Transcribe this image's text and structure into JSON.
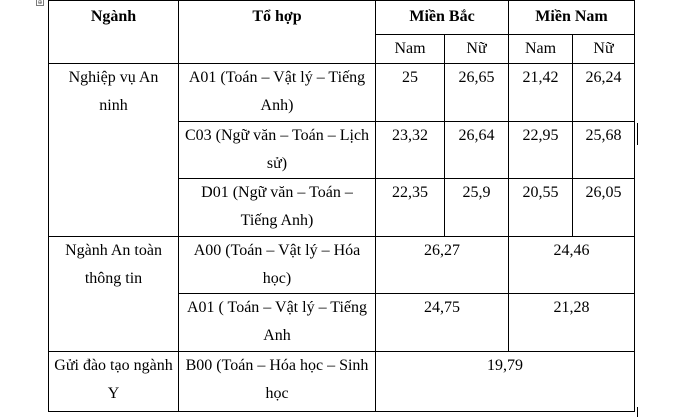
{
  "table": {
    "header": {
      "nganh": "Ngành",
      "to_hop": "Tổ hợp",
      "mien_bac": "Miền Bắc",
      "mien_nam": "Miền Nam"
    },
    "subheader": {
      "bac_nam": "Nam",
      "bac_nu": "Nữ",
      "nam_nam": "Nam",
      "nam_nu": "Nữ"
    },
    "groups": [
      {
        "nganh": "Nghiệp vụ An ninh",
        "rows": [
          {
            "to_hop": "A01 (Toán – Vật lý – Tiếng Anh)",
            "bac_nam": "25",
            "bac_nu": "26,65",
            "nam_nam": "21,42",
            "nam_nu": "26,24"
          },
          {
            "to_hop": "C03 (Ngữ văn – Toán – Lịch sử)",
            "bac_nam": "23,32",
            "bac_nu": "26,64",
            "nam_nam": "22,95",
            "nam_nu": "25,68"
          },
          {
            "to_hop": "D01 (Ngữ văn – Toán – Tiếng Anh)",
            "bac_nam": "22,35",
            "bac_nu": "25,9",
            "nam_nam": "20,55",
            "nam_nu": "26,05"
          }
        ]
      },
      {
        "nganh": "Ngành An toàn thông tin",
        "rows": [
          {
            "to_hop": "A00 (Toán – Vật lý – Hóa học)",
            "mien_bac": "26,27",
            "mien_nam": "24,46"
          },
          {
            "to_hop": "A01 ( Toán – Vật lý – Tiếng Anh",
            "mien_bac": "24,75",
            "mien_nam": "21,28"
          }
        ]
      },
      {
        "nganh": "Gửi đào tạo ngành Y",
        "rows": [
          {
            "to_hop": "B00 (Toán – Hóa học – Sinh học",
            "all": "19,79"
          }
        ]
      }
    ]
  }
}
